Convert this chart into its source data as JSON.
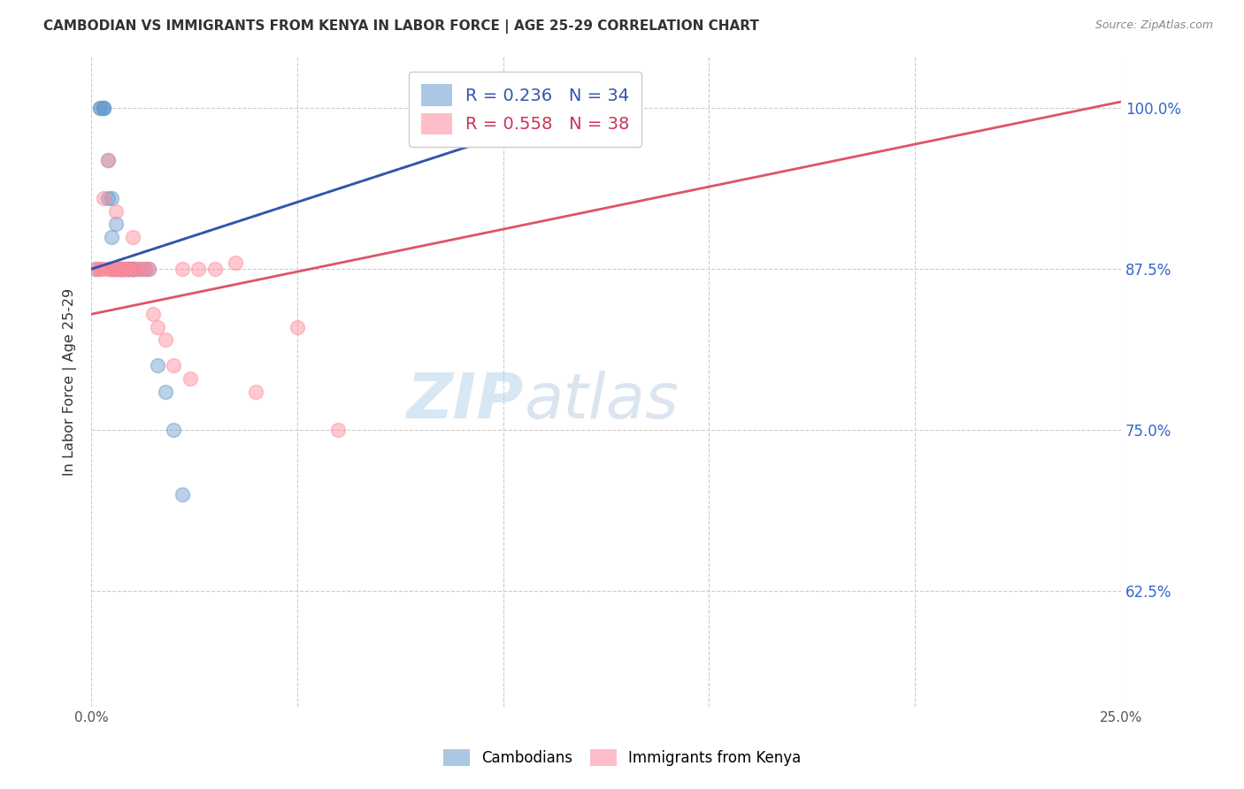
{
  "title": "CAMBODIAN VS IMMIGRANTS FROM KENYA IN LABOR FORCE | AGE 25-29 CORRELATION CHART",
  "source": "Source: ZipAtlas.com",
  "ylabel": "In Labor Force | Age 25-29",
  "ytick_labels": [
    "100.0%",
    "87.5%",
    "75.0%",
    "62.5%"
  ],
  "ytick_values": [
    1.0,
    0.875,
    0.75,
    0.625
  ],
  "xlim": [
    0.0,
    0.25
  ],
  "ylim": [
    0.535,
    1.04
  ],
  "legend_r_cambodian": "R = 0.236",
  "legend_n_cambodian": "N = 34",
  "legend_r_kenya": "R = 0.558",
  "legend_n_kenya": "N = 38",
  "color_cambodian": "#6699CC",
  "color_kenya": "#FF8899",
  "color_trend_cambodian": "#3355AA",
  "color_trend_kenya": "#DD5566",
  "watermark_zip": "ZIP",
  "watermark_atlas": "atlas",
  "cambodian_x": [
    0.001,
    0.002,
    0.002,
    0.003,
    0.003,
    0.003,
    0.004,
    0.004,
    0.005,
    0.005,
    0.005,
    0.006,
    0.006,
    0.006,
    0.007,
    0.007,
    0.007,
    0.008,
    0.008,
    0.009,
    0.009,
    0.009,
    0.01,
    0.01,
    0.01,
    0.011,
    0.012,
    0.013,
    0.014,
    0.016,
    0.018,
    0.02,
    0.022,
    0.115
  ],
  "cambodian_y": [
    0.875,
    1.0,
    1.0,
    1.0,
    1.0,
    1.0,
    0.96,
    0.93,
    0.93,
    0.9,
    0.875,
    0.91,
    0.875,
    0.875,
    0.875,
    0.875,
    0.875,
    0.875,
    0.875,
    0.875,
    0.875,
    0.875,
    0.875,
    0.875,
    0.875,
    0.875,
    0.875,
    0.875,
    0.875,
    0.8,
    0.78,
    0.75,
    0.7,
    1.0
  ],
  "kenya_x": [
    0.001,
    0.002,
    0.002,
    0.003,
    0.003,
    0.004,
    0.004,
    0.005,
    0.005,
    0.006,
    0.006,
    0.006,
    0.007,
    0.007,
    0.008,
    0.008,
    0.009,
    0.009,
    0.01,
    0.01,
    0.011,
    0.012,
    0.013,
    0.014,
    0.015,
    0.016,
    0.018,
    0.02,
    0.022,
    0.024,
    0.026,
    0.03,
    0.035,
    0.04,
    0.05,
    0.06,
    0.12,
    0.125
  ],
  "kenya_y": [
    0.875,
    0.875,
    0.875,
    0.93,
    0.875,
    0.875,
    0.96,
    0.875,
    0.875,
    0.875,
    0.875,
    0.92,
    0.875,
    0.875,
    0.875,
    0.875,
    0.875,
    0.875,
    0.875,
    0.9,
    0.875,
    0.875,
    0.875,
    0.875,
    0.84,
    0.83,
    0.82,
    0.8,
    0.875,
    0.79,
    0.875,
    0.875,
    0.88,
    0.78,
    0.83,
    0.75,
    1.0,
    1.0
  ],
  "marker_size": 130,
  "trend_cambodian_x0": 0.0,
  "trend_cambodian_x1": 0.125,
  "trend_cambodian_y0": 0.875,
  "trend_cambodian_y1": 1.005,
  "trend_kenya_x0": 0.0,
  "trend_kenya_x1": 0.25,
  "trend_kenya_y0": 0.84,
  "trend_kenya_y1": 1.005
}
